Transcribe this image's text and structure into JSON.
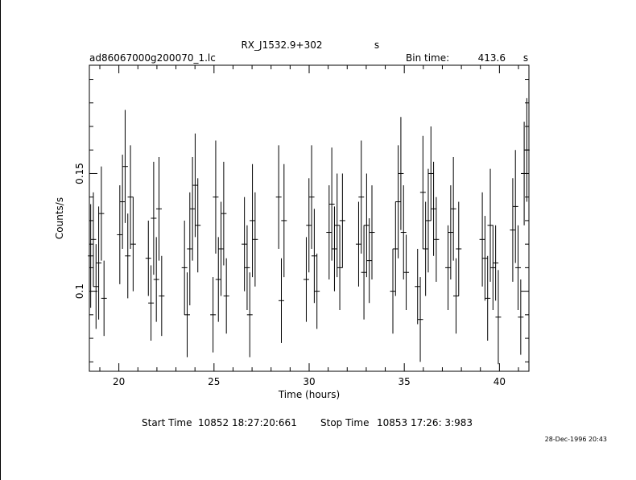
{
  "header": {
    "object": "RX_J1532.9+302",
    "object_unit": "s",
    "filename": "ad86067000g200070_1.lc",
    "bin_label": "Bin time:",
    "bin_value": "413.6",
    "bin_unit": "s"
  },
  "footer": {
    "start_label": "Start Time",
    "start_value": "10852 18:27:20:661",
    "stop_label": "Stop Time",
    "stop_value": "10853 17:26: 3:983",
    "timestamp": "28-Dec-1996 20:43"
  },
  "chart_data": {
    "type": "scatter",
    "title": "RX_J1532.9+302",
    "xlabel": "Time (hours)",
    "ylabel": "Counts/s",
    "xlim": [
      18.45,
      41.55
    ],
    "ylim": [
      0.066,
      0.196
    ],
    "x_ticks": [
      20,
      25,
      30,
      35,
      40
    ],
    "x_tick_labels": [
      "20",
      "25",
      "30",
      "35",
      "40"
    ],
    "y_ticks": [
      0.1,
      0.15
    ],
    "y_tick_labels": [
      "0.1",
      "0.15"
    ],
    "grid": false,
    "points": [
      {
        "x": 18.52,
        "y": 0.115,
        "err": 0.022
      },
      {
        "x": 18.66,
        "y": 0.122,
        "err": 0.02
      },
      {
        "x": 18.8,
        "y": 0.102,
        "err": 0.018
      },
      {
        "x": 18.94,
        "y": 0.112,
        "err": 0.024
      },
      {
        "x": 19.08,
        "y": 0.133,
        "err": 0.02
      },
      {
        "x": 19.22,
        "y": 0.097,
        "err": 0.016
      },
      {
        "x": 20.05,
        "y": 0.124,
        "err": 0.021
      },
      {
        "x": 20.19,
        "y": 0.138,
        "err": 0.02
      },
      {
        "x": 20.33,
        "y": 0.153,
        "err": 0.024
      },
      {
        "x": 20.47,
        "y": 0.115,
        "err": 0.018
      },
      {
        "x": 20.61,
        "y": 0.14,
        "err": 0.022
      },
      {
        "x": 20.75,
        "y": 0.12,
        "err": 0.02
      },
      {
        "x": 21.55,
        "y": 0.114,
        "err": 0.016
      },
      {
        "x": 21.69,
        "y": 0.095,
        "err": 0.016
      },
      {
        "x": 21.83,
        "y": 0.131,
        "err": 0.024
      },
      {
        "x": 21.97,
        "y": 0.105,
        "err": 0.018
      },
      {
        "x": 22.11,
        "y": 0.135,
        "err": 0.022
      },
      {
        "x": 22.25,
        "y": 0.098,
        "err": 0.017
      },
      {
        "x": 23.45,
        "y": 0.11,
        "err": 0.02
      },
      {
        "x": 23.59,
        "y": 0.09,
        "err": 0.018
      },
      {
        "x": 23.73,
        "y": 0.118,
        "err": 0.024
      },
      {
        "x": 23.87,
        "y": 0.135,
        "err": 0.022
      },
      {
        "x": 24.01,
        "y": 0.145,
        "err": 0.022
      },
      {
        "x": 24.15,
        "y": 0.128,
        "err": 0.02
      },
      {
        "x": 24.95,
        "y": 0.09,
        "err": 0.016
      },
      {
        "x": 25.09,
        "y": 0.14,
        "err": 0.024
      },
      {
        "x": 25.23,
        "y": 0.105,
        "err": 0.018
      },
      {
        "x": 25.37,
        "y": 0.118,
        "err": 0.02
      },
      {
        "x": 25.51,
        "y": 0.133,
        "err": 0.022
      },
      {
        "x": 25.65,
        "y": 0.098,
        "err": 0.016
      },
      {
        "x": 26.6,
        "y": 0.12,
        "err": 0.02
      },
      {
        "x": 26.74,
        "y": 0.11,
        "err": 0.018
      },
      {
        "x": 26.88,
        "y": 0.09,
        "err": 0.018
      },
      {
        "x": 27.02,
        "y": 0.13,
        "err": 0.024
      },
      {
        "x": 27.16,
        "y": 0.122,
        "err": 0.02
      },
      {
        "x": 28.4,
        "y": 0.14,
        "err": 0.022
      },
      {
        "x": 28.54,
        "y": 0.096,
        "err": 0.018
      },
      {
        "x": 28.68,
        "y": 0.13,
        "err": 0.024
      },
      {
        "x": 29.85,
        "y": 0.105,
        "err": 0.018
      },
      {
        "x": 29.99,
        "y": 0.128,
        "err": 0.02
      },
      {
        "x": 30.13,
        "y": 0.14,
        "err": 0.022
      },
      {
        "x": 30.27,
        "y": 0.115,
        "err": 0.02
      },
      {
        "x": 30.41,
        "y": 0.1,
        "err": 0.016
      },
      {
        "x": 31.05,
        "y": 0.125,
        "err": 0.02
      },
      {
        "x": 31.19,
        "y": 0.137,
        "err": 0.024
      },
      {
        "x": 31.33,
        "y": 0.118,
        "err": 0.018
      },
      {
        "x": 31.47,
        "y": 0.128,
        "err": 0.022
      },
      {
        "x": 31.61,
        "y": 0.11,
        "err": 0.018
      },
      {
        "x": 31.75,
        "y": 0.13,
        "err": 0.02
      },
      {
        "x": 32.6,
        "y": 0.12,
        "err": 0.018
      },
      {
        "x": 32.74,
        "y": 0.14,
        "err": 0.024
      },
      {
        "x": 32.88,
        "y": 0.108,
        "err": 0.02
      },
      {
        "x": 33.02,
        "y": 0.128,
        "err": 0.022
      },
      {
        "x": 33.16,
        "y": 0.113,
        "err": 0.018
      },
      {
        "x": 33.3,
        "y": 0.125,
        "err": 0.02
      },
      {
        "x": 34.4,
        "y": 0.1,
        "err": 0.018
      },
      {
        "x": 34.54,
        "y": 0.118,
        "err": 0.02
      },
      {
        "x": 34.68,
        "y": 0.138,
        "err": 0.024
      },
      {
        "x": 34.82,
        "y": 0.15,
        "err": 0.024
      },
      {
        "x": 34.96,
        "y": 0.125,
        "err": 0.02
      },
      {
        "x": 35.1,
        "y": 0.108,
        "err": 0.016
      },
      {
        "x": 35.7,
        "y": 0.102,
        "err": 0.016
      },
      {
        "x": 35.84,
        "y": 0.088,
        "err": 0.018
      },
      {
        "x": 35.98,
        "y": 0.142,
        "err": 0.024
      },
      {
        "x": 36.12,
        "y": 0.118,
        "err": 0.02
      },
      {
        "x": 36.26,
        "y": 0.13,
        "err": 0.022
      },
      {
        "x": 36.4,
        "y": 0.15,
        "err": 0.02
      },
      {
        "x": 36.54,
        "y": 0.135,
        "err": 0.02
      },
      {
        "x": 36.68,
        "y": 0.122,
        "err": 0.018
      },
      {
        "x": 37.3,
        "y": 0.11,
        "err": 0.018
      },
      {
        "x": 37.44,
        "y": 0.125,
        "err": 0.02
      },
      {
        "x": 37.58,
        "y": 0.135,
        "err": 0.022
      },
      {
        "x": 37.72,
        "y": 0.098,
        "err": 0.016
      },
      {
        "x": 37.86,
        "y": 0.118,
        "err": 0.02
      },
      {
        "x": 39.1,
        "y": 0.122,
        "err": 0.02
      },
      {
        "x": 39.24,
        "y": 0.114,
        "err": 0.018
      },
      {
        "x": 39.38,
        "y": 0.097,
        "err": 0.018
      },
      {
        "x": 39.52,
        "y": 0.128,
        "err": 0.024
      },
      {
        "x": 39.66,
        "y": 0.11,
        "err": 0.018
      },
      {
        "x": 39.8,
        "y": 0.112,
        "err": 0.016
      },
      {
        "x": 39.94,
        "y": 0.089,
        "err": 0.02
      },
      {
        "x": 40.7,
        "y": 0.126,
        "err": 0.022
      },
      {
        "x": 40.84,
        "y": 0.136,
        "err": 0.024
      },
      {
        "x": 40.98,
        "y": 0.11,
        "err": 0.018
      },
      {
        "x": 41.12,
        "y": 0.089,
        "err": 0.016
      },
      {
        "x": 41.3,
        "y": 0.15,
        "err": 0.022
      },
      {
        "x": 41.44,
        "y": 0.16,
        "err": 0.022
      }
    ]
  }
}
